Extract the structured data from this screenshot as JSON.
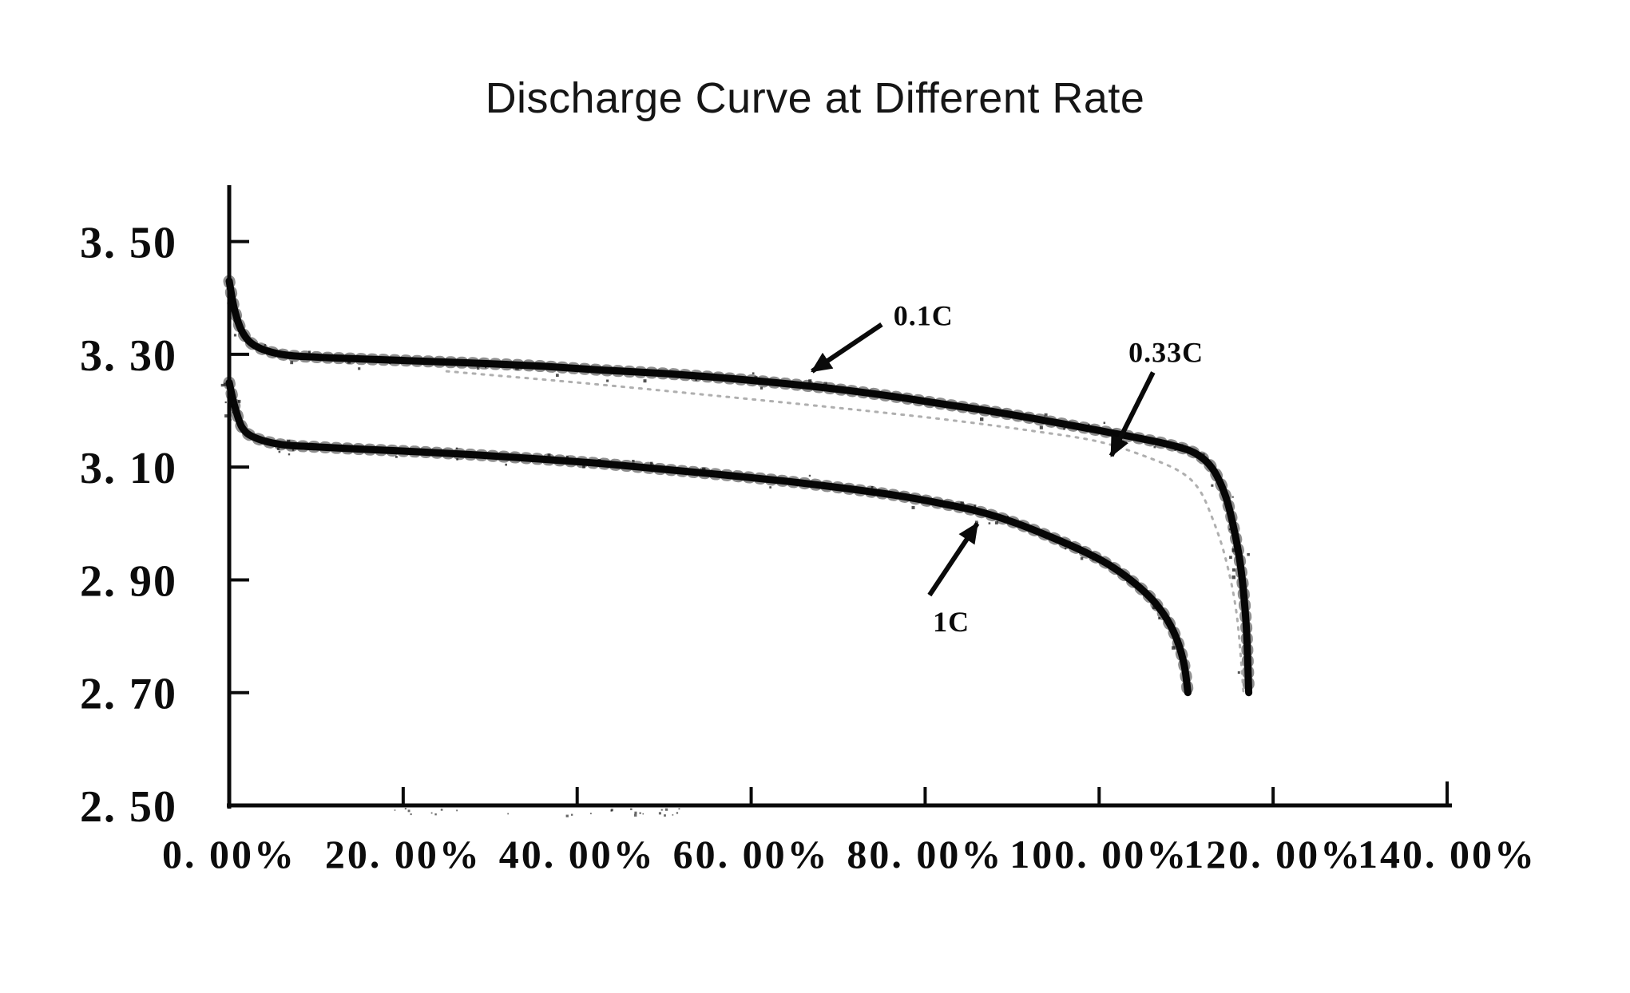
{
  "page": {
    "background": "#ffffff"
  },
  "colors": {
    "curve": "#060606",
    "faint_curve": "#a6a6a6",
    "text": "#0c0c0c",
    "background": "#ffffff"
  },
  "chart_data": {
    "type": "line",
    "title": "Discharge Curve at Different Rate",
    "xlabel": "",
    "ylabel": "",
    "xlim": [
      0,
      140
    ],
    "ylim": [
      2.5,
      3.6
    ],
    "grid": false,
    "legend_position": "none (arrow annotations on plot)",
    "x_ticks": [
      {
        "value": 0,
        "label": "0. 00%"
      },
      {
        "value": 20,
        "label": "20. 00%"
      },
      {
        "value": 40,
        "label": "40. 00%"
      },
      {
        "value": 60,
        "label": "60. 00%"
      },
      {
        "value": 80,
        "label": "80. 00%"
      },
      {
        "value": 100,
        "label": "100. 00%"
      },
      {
        "value": 120,
        "label": "120. 00%"
      },
      {
        "value": 140,
        "label": "140. 00%"
      }
    ],
    "y_ticks": [
      {
        "value": 3.5,
        "label": "3. 50"
      },
      {
        "value": 3.3,
        "label": "3. 30"
      },
      {
        "value": 3.1,
        "label": "3. 10"
      },
      {
        "value": 2.9,
        "label": "2. 90"
      },
      {
        "value": 2.7,
        "label": "2. 70"
      },
      {
        "value": 2.5,
        "label": "2. 50"
      }
    ],
    "series": [
      {
        "name": "0.1C",
        "appearance": "thick solid black scanned line",
        "points": [
          [
            0,
            3.43
          ],
          [
            0.6,
            3.38
          ],
          [
            1.5,
            3.34
          ],
          [
            3,
            3.315
          ],
          [
            6,
            3.3
          ],
          [
            10,
            3.295
          ],
          [
            15,
            3.292
          ],
          [
            22,
            3.288
          ],
          [
            29,
            3.284
          ],
          [
            36,
            3.279
          ],
          [
            43,
            3.272
          ],
          [
            50,
            3.266
          ],
          [
            57,
            3.258
          ],
          [
            64,
            3.248
          ],
          [
            70,
            3.238
          ],
          [
            76,
            3.226
          ],
          [
            82,
            3.212
          ],
          [
            88,
            3.198
          ],
          [
            94,
            3.182
          ],
          [
            100,
            3.165
          ],
          [
            104,
            3.153
          ],
          [
            108,
            3.14
          ],
          [
            111,
            3.125
          ],
          [
            113,
            3.098
          ],
          [
            114.5,
            3.05
          ],
          [
            115.5,
            2.99
          ],
          [
            116.3,
            2.92
          ],
          [
            116.9,
            2.82
          ],
          [
            117.2,
            2.7
          ]
        ]
      },
      {
        "name": "0.33C",
        "appearance": "very faint dotted gray trace between the two dark curves",
        "points": [
          [
            25,
            3.27
          ],
          [
            40,
            3.25
          ],
          [
            55,
            3.228
          ],
          [
            70,
            3.205
          ],
          [
            82,
            3.185
          ],
          [
            92,
            3.165
          ],
          [
            100,
            3.145
          ],
          [
            106,
            3.115
          ],
          [
            109.5,
            3.09
          ],
          [
            111.5,
            3.06
          ],
          [
            113,
            3.01
          ],
          [
            114.5,
            2.94
          ],
          [
            115.8,
            2.84
          ],
          [
            116.6,
            2.7
          ]
        ]
      },
      {
        "name": "1C",
        "appearance": "thick solid black scanned line",
        "points": [
          [
            0,
            3.25
          ],
          [
            0.6,
            3.21
          ],
          [
            1.5,
            3.17
          ],
          [
            3,
            3.152
          ],
          [
            6,
            3.14
          ],
          [
            10,
            3.136
          ],
          [
            15,
            3.132
          ],
          [
            22,
            3.127
          ],
          [
            29,
            3.121
          ],
          [
            36,
            3.114
          ],
          [
            43,
            3.106
          ],
          [
            50,
            3.096
          ],
          [
            57,
            3.086
          ],
          [
            64,
            3.075
          ],
          [
            71,
            3.062
          ],
          [
            77,
            3.049
          ],
          [
            82,
            3.035
          ],
          [
            86,
            3.022
          ],
          [
            90,
            3.003
          ],
          [
            94,
            2.979
          ],
          [
            98,
            2.952
          ],
          [
            101,
            2.928
          ],
          [
            104,
            2.895
          ],
          [
            106.5,
            2.858
          ],
          [
            108.5,
            2.81
          ],
          [
            109.7,
            2.755
          ],
          [
            110.2,
            2.7
          ]
        ]
      }
    ],
    "annotations": [
      {
        "label": "0.1C",
        "series": "0.1C",
        "label_x": 79.8,
        "label_y": 3.37,
        "arrow_from_x": 75.0,
        "arrow_from_y": 3.353,
        "arrow_to_x": 67.0,
        "arrow_to_y": 3.27
      },
      {
        "label": "0.33C",
        "series": "0.33C",
        "label_x": 107.7,
        "label_y": 3.305,
        "arrow_from_x": 106.2,
        "arrow_from_y": 3.268,
        "arrow_to_x": 101.4,
        "arrow_to_y": 3.12
      },
      {
        "label": "1C",
        "series": "1C",
        "label_x": 83.0,
        "label_y": 2.827,
        "arrow_from_x": 80.5,
        "arrow_from_y": 2.873,
        "arrow_to_x": 86.0,
        "arrow_to_y": 3.0
      }
    ]
  }
}
